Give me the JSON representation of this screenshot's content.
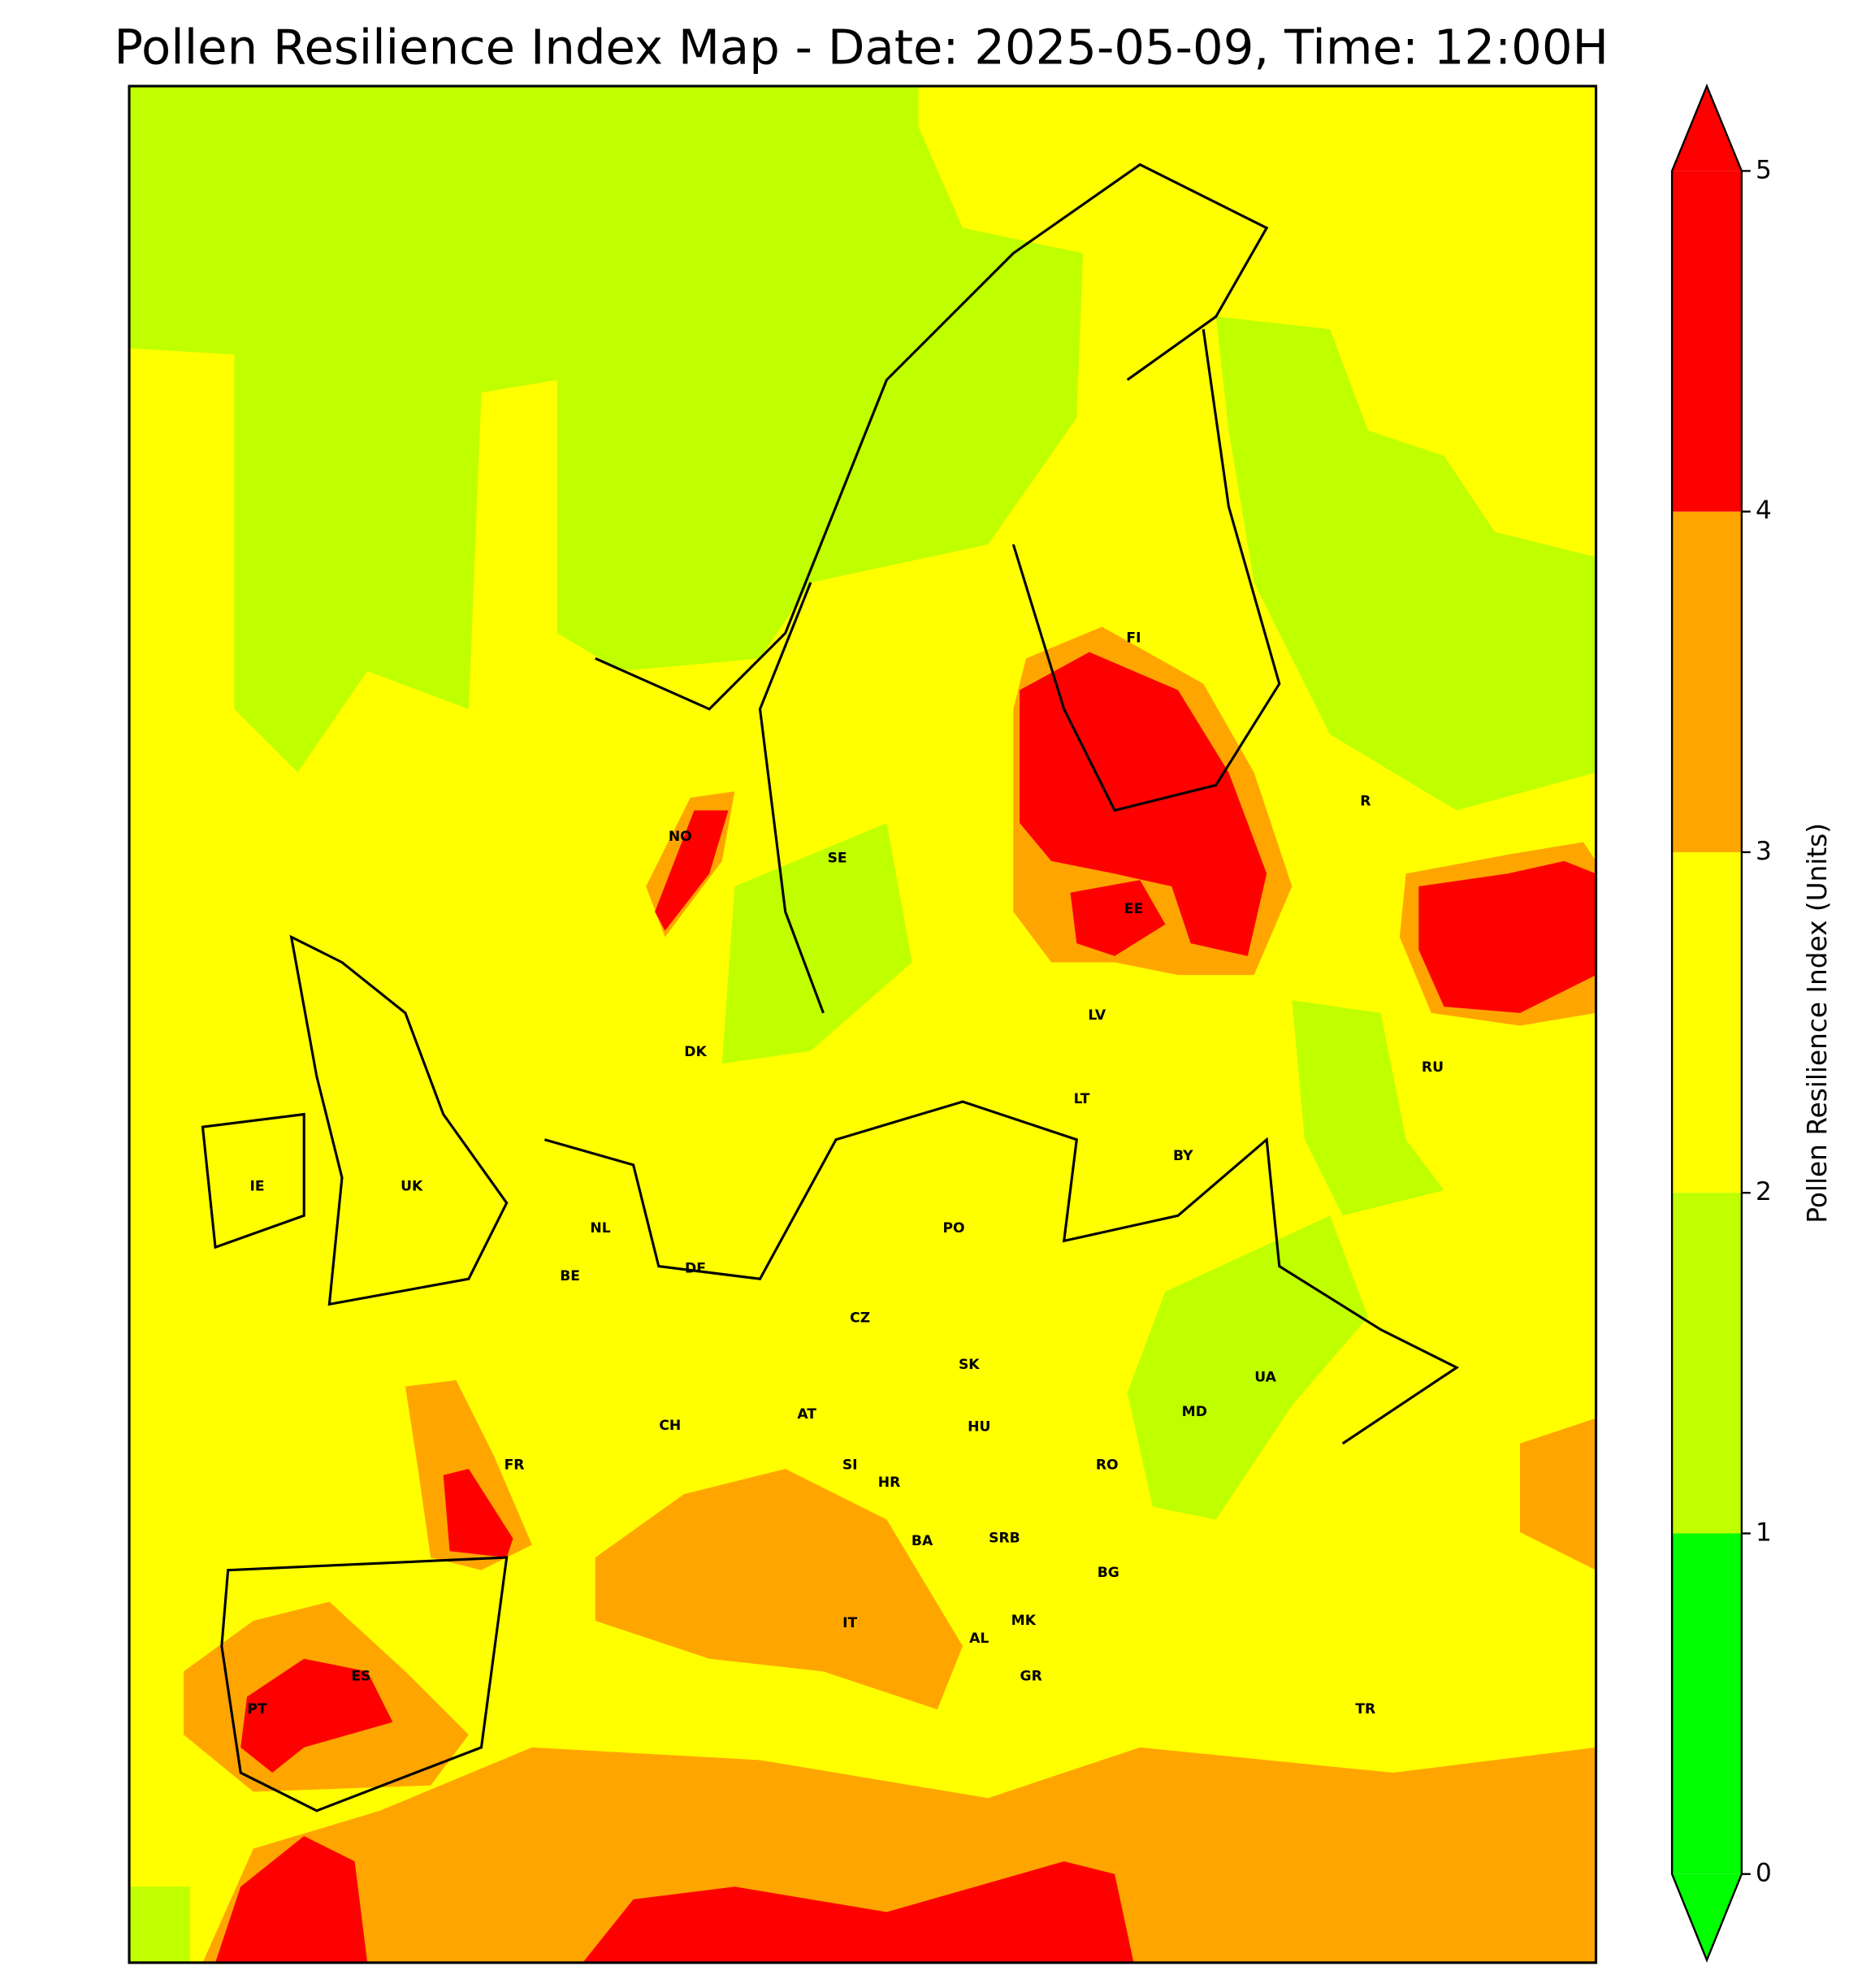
{
  "title": "Pollen Resilience Index Map - Date: 2025-05-09, Time: 12:00H",
  "colorbar": {
    "label": "Pollen Resilience Index (Units)",
    "ticks": [
      0,
      1,
      2,
      3,
      4,
      5
    ],
    "colors": [
      "#00ff00",
      "#bfff00",
      "#ffff00",
      "#ffa500",
      "#ff0000"
    ],
    "extend": "both"
  },
  "map": {
    "country_labels": [
      "NO",
      "SE",
      "FI",
      "EE",
      "LV",
      "LT",
      "DK",
      "IE",
      "UK",
      "NL",
      "BE",
      "DE",
      "PO",
      "BY",
      "RU",
      "R",
      "CZ",
      "SK",
      "AT",
      "CH",
      "HU",
      "UA",
      "MD",
      "FR",
      "SI",
      "HR",
      "RO",
      "BA",
      "SRB",
      "BG",
      "MK",
      "IT",
      "AL",
      "ES",
      "PT",
      "GR",
      "TR"
    ]
  }
}
